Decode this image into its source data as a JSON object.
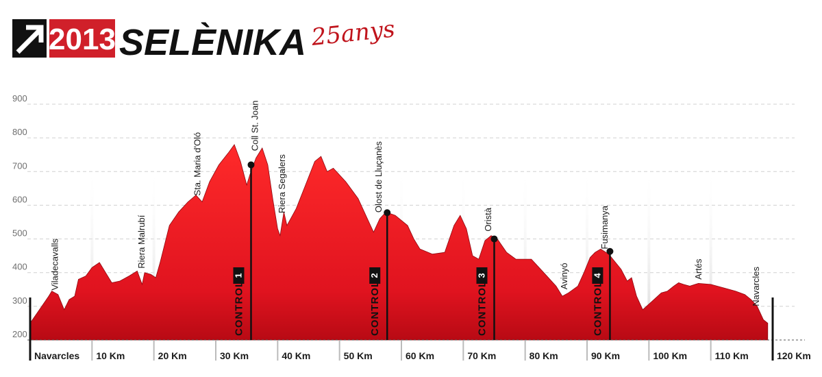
{
  "header": {
    "year": "2013",
    "brand": "SELÈNIKA",
    "anniversary": "25anys",
    "colors": {
      "brand_red": "#d0202a",
      "dark": "#111111"
    }
  },
  "chart_data": {
    "type": "area",
    "title": "",
    "xlabel": "",
    "ylabel": "",
    "xlim": [
      0,
      120
    ],
    "ylim": [
      200,
      900
    ],
    "y_ticks": [
      "200",
      "300",
      "400",
      "500",
      "600",
      "700",
      "800",
      "900"
    ],
    "x_ticks": [
      "Navarcles",
      "10 Km",
      "20 Km",
      "30 Km",
      "40 Km",
      "50 Km",
      "60 Km",
      "70 Km",
      "80 Km",
      "90 Km",
      "100 Km",
      "110 Km",
      "120 Km"
    ],
    "fill_color": "#e0131f",
    "profile": [
      [
        0,
        250
      ],
      [
        1.5,
        290
      ],
      [
        3,
        330
      ],
      [
        3.5,
        345
      ],
      [
        4.5,
        335
      ],
      [
        5.5,
        290
      ],
      [
        6.3,
        320
      ],
      [
        7.2,
        330
      ],
      [
        7.8,
        380
      ],
      [
        9,
        390
      ],
      [
        10,
        415
      ],
      [
        11.2,
        430
      ],
      [
        12.2,
        400
      ],
      [
        13.2,
        370
      ],
      [
        14.5,
        375
      ],
      [
        16,
        390
      ],
      [
        17.3,
        405
      ],
      [
        18.1,
        365
      ],
      [
        18.5,
        400
      ],
      [
        19.5,
        395
      ],
      [
        20.3,
        385
      ],
      [
        21,
        430
      ],
      [
        22.5,
        540
      ],
      [
        24,
        580
      ],
      [
        25.5,
        610
      ],
      [
        26.8,
        630
      ],
      [
        27.8,
        610
      ],
      [
        29,
        670
      ],
      [
        30.5,
        720
      ],
      [
        32,
        755
      ],
      [
        33,
        780
      ],
      [
        34,
        730
      ],
      [
        35,
        660
      ],
      [
        35.5,
        690
      ],
      [
        36.5,
        740
      ],
      [
        37.5,
        770
      ],
      [
        38.4,
        720
      ],
      [
        39.2,
        620
      ],
      [
        40,
        530
      ],
      [
        40.4,
        510
      ],
      [
        41,
        580
      ],
      [
        41.5,
        540
      ],
      [
        43,
        590
      ],
      [
        44.5,
        660
      ],
      [
        46,
        730
      ],
      [
        47,
        745
      ],
      [
        48,
        700
      ],
      [
        49,
        710
      ],
      [
        51,
        670
      ],
      [
        53,
        620
      ],
      [
        54.5,
        560
      ],
      [
        55.5,
        520
      ],
      [
        56.5,
        560
      ],
      [
        57.5,
        580
      ],
      [
        59,
        570
      ],
      [
        61,
        540
      ],
      [
        62,
        500
      ],
      [
        63,
        470
      ],
      [
        65,
        455
      ],
      [
        67,
        460
      ],
      [
        68.5,
        540
      ],
      [
        69.5,
        570
      ],
      [
        70.5,
        530
      ],
      [
        71.5,
        450
      ],
      [
        72.5,
        440
      ],
      [
        73.5,
        495
      ],
      [
        74.5,
        510
      ],
      [
        75.5,
        500
      ],
      [
        77,
        460
      ],
      [
        78.5,
        440
      ],
      [
        81,
        440
      ],
      [
        83,
        400
      ],
      [
        85,
        360
      ],
      [
        86,
        330
      ],
      [
        87,
        340
      ],
      [
        88.5,
        360
      ],
      [
        89.5,
        400
      ],
      [
        90.5,
        445
      ],
      [
        91.3,
        460
      ],
      [
        92.2,
        470
      ],
      [
        93.5,
        455
      ],
      [
        95.5,
        410
      ],
      [
        96.5,
        375
      ],
      [
        97.2,
        385
      ],
      [
        98,
        330
      ],
      [
        99,
        290
      ],
      [
        100.5,
        315
      ],
      [
        102,
        340
      ],
      [
        103,
        345
      ],
      [
        104,
        360
      ],
      [
        104.8,
        370
      ],
      [
        105.6,
        365
      ],
      [
        106.6,
        360
      ],
      [
        108,
        368
      ],
      [
        110,
        365
      ],
      [
        112,
        355
      ],
      [
        114,
        345
      ],
      [
        115.5,
        335
      ],
      [
        116.5,
        320
      ],
      [
        117.5,
        300
      ],
      [
        118.5,
        260
      ],
      [
        119.2,
        250
      ]
    ],
    "places": [
      {
        "name": "Viladecavalls",
        "km": 4.5
      },
      {
        "name": "Riera Malrubí",
        "km": 18.5
      },
      {
        "name": "Sta. Maria d'Oló",
        "km": 27.5
      },
      {
        "name": "Coll St. Joan",
        "km": 36.8
      },
      {
        "name": "Riera Segalers",
        "km": 41.2
      },
      {
        "name": "Olost de Lluçanès",
        "km": 56.8
      },
      {
        "name": "Oristà",
        "km": 74.5
      },
      {
        "name": "Avinyó",
        "km": 86.8
      },
      {
        "name": "Fusimanya",
        "km": 93.3
      },
      {
        "name": "Artés",
        "km": 108.5
      },
      {
        "name": "Navarcles",
        "km": 117.8
      }
    ],
    "controls": [
      {
        "label": "CONTROL",
        "number": "1",
        "km": 35.7,
        "elevation": 720
      },
      {
        "label": "CONTROL",
        "number": "2",
        "km": 57.7,
        "elevation": 578
      },
      {
        "label": "CONTROL",
        "number": "3",
        "km": 75,
        "elevation": 500
      },
      {
        "label": "CONTROL",
        "number": "4",
        "km": 93.7,
        "elevation": 463
      }
    ]
  }
}
